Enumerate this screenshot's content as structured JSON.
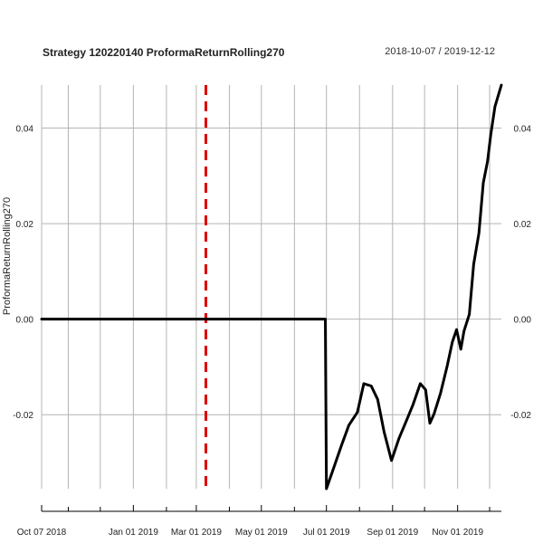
{
  "header": {
    "title": "Strategy 120220140 ProformaReturnRolling270",
    "date_range": "2018-10-07 / 2019-12-12"
  },
  "chart_data": {
    "type": "line",
    "title": "Strategy 120220140 ProformaReturnRolling270",
    "subtitle": "2018-10-07 / 2019-12-12",
    "ylabel": "ProformaReturnRolling270",
    "xlabel": "",
    "xlim": [
      "2018-10-07",
      "2019-12-12"
    ],
    "ylim": [
      -0.0355,
      0.049
    ],
    "grid": true,
    "y_ticks": [
      -0.02,
      0.0,
      0.02,
      0.04
    ],
    "y_tick_labels": [
      "-0.02",
      "0.00",
      "0.02",
      "0.04"
    ],
    "x_ticks": [
      {
        "date": "2018-10-07",
        "label": "Oct 07 2018"
      },
      {
        "date": "2019-01-01",
        "label": "Jan 01 2019"
      },
      {
        "date": "2019-03-01",
        "label": "Mar 01 2019"
      },
      {
        "date": "2019-05-01",
        "label": "May 01 2019"
      },
      {
        "date": "2019-07-01",
        "label": "Jul 01 2019"
      },
      {
        "date": "2019-09-01",
        "label": "Sep 01 2019"
      },
      {
        "date": "2019-11-01",
        "label": "Nov 01 2019"
      }
    ],
    "x_minor_ticks": [
      "2018-11-01",
      "2018-12-01",
      "2019-02-01",
      "2019-04-01",
      "2019-06-01",
      "2019-08-01",
      "2019-10-01",
      "2019-12-01"
    ],
    "vertical_gridlines": [
      "2018-10-07",
      "2018-11-01",
      "2018-12-01",
      "2019-01-01",
      "2019-02-01",
      "2019-03-01",
      "2019-04-01",
      "2019-05-01",
      "2019-06-01",
      "2019-07-01",
      "2019-08-01",
      "2019-09-01",
      "2019-10-01",
      "2019-11-01",
      "2019-12-01"
    ],
    "event_line": {
      "date": "2019-03-10",
      "color": "#dd0000",
      "style": "dashed"
    },
    "series": [
      {
        "color": "#000000",
        "points": [
          [
            "2018-10-07",
            0.0
          ],
          [
            "2019-06-30",
            0.0
          ],
          [
            "2019-07-01",
            -0.0355
          ],
          [
            "2019-07-08",
            -0.031
          ],
          [
            "2019-07-15",
            -0.0265
          ],
          [
            "2019-07-22",
            -0.0222
          ],
          [
            "2019-07-30",
            -0.0195
          ],
          [
            "2019-08-05",
            -0.0135
          ],
          [
            "2019-08-12",
            -0.014
          ],
          [
            "2019-08-18",
            -0.0168
          ],
          [
            "2019-08-24",
            -0.0235
          ],
          [
            "2019-08-31",
            -0.0296
          ],
          [
            "2019-09-07",
            -0.025
          ],
          [
            "2019-09-13",
            -0.0218
          ],
          [
            "2019-09-20",
            -0.018
          ],
          [
            "2019-09-27",
            -0.0135
          ],
          [
            "2019-10-02",
            -0.0148
          ],
          [
            "2019-10-06",
            -0.0218
          ],
          [
            "2019-10-10",
            -0.0198
          ],
          [
            "2019-10-16",
            -0.0155
          ],
          [
            "2019-10-22",
            -0.01
          ],
          [
            "2019-10-27",
            -0.0048
          ],
          [
            "2019-10-31",
            -0.0022
          ],
          [
            "2019-11-04",
            -0.0063
          ],
          [
            "2019-11-07",
            -0.0025
          ],
          [
            "2019-11-12",
            0.001
          ],
          [
            "2019-11-16",
            0.0115
          ],
          [
            "2019-11-21",
            0.018
          ],
          [
            "2019-11-25",
            0.0285
          ],
          [
            "2019-11-29",
            0.033
          ],
          [
            "2019-12-02",
            0.0385
          ],
          [
            "2019-12-06",
            0.0445
          ],
          [
            "2019-12-12",
            0.049
          ]
        ]
      }
    ]
  }
}
